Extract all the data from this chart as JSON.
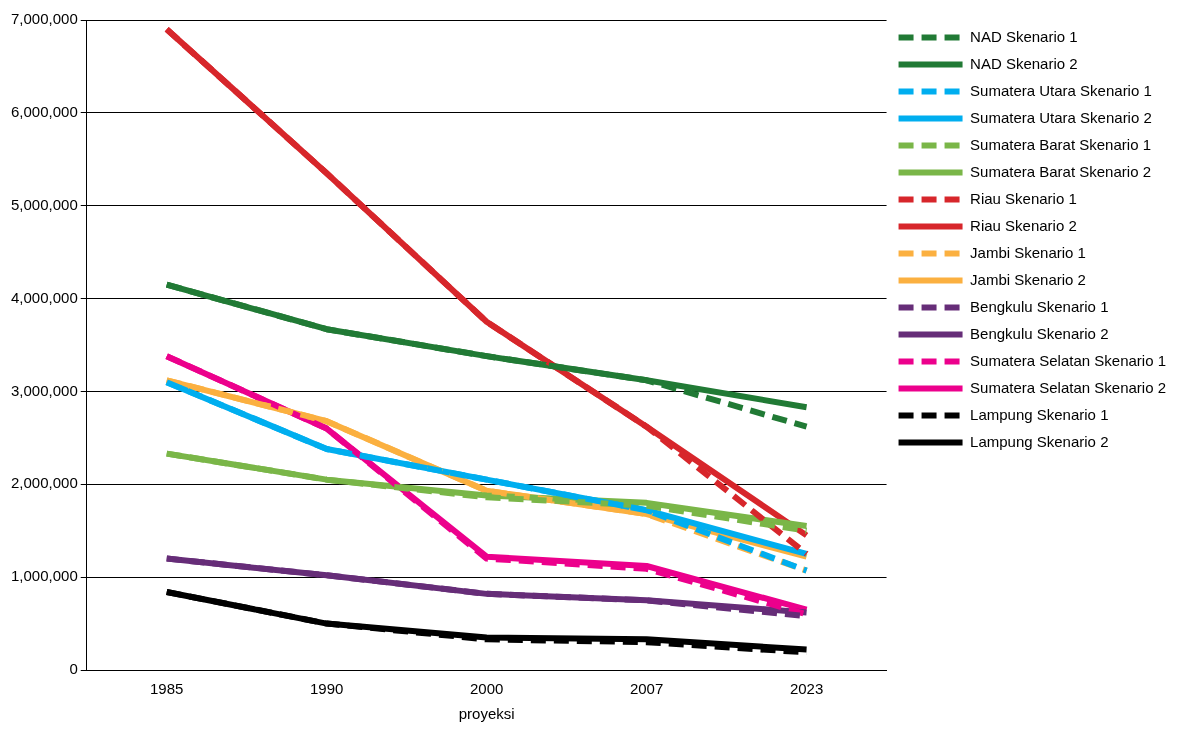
{
  "chart_data": {
    "type": "line",
    "xlabel": "proyeksi",
    "categories": [
      "1985",
      "1990",
      "2000",
      "2007",
      "2023"
    ],
    "ylim": [
      0,
      7000000
    ],
    "yticks": [
      {
        "value": 0,
        "label": "0"
      },
      {
        "value": 1000000,
        "label": "1,000,000"
      },
      {
        "value": 2000000,
        "label": "2,000,000"
      },
      {
        "value": 3000000,
        "label": "3,000,000"
      },
      {
        "value": 4000000,
        "label": "4,000,000"
      },
      {
        "value": 5000000,
        "label": "5,000,000"
      },
      {
        "value": 6000000,
        "label": "6,000,000"
      },
      {
        "value": 7000000,
        "label": "7,000,000"
      }
    ],
    "grid": "y",
    "legend": "right",
    "marker": "none",
    "series": [
      {
        "name": "NAD Skenario 1",
        "color": "#217a35",
        "line_style": "dashed",
        "values": [
          4150000,
          3670000,
          3380000,
          3120000,
          2620000
        ]
      },
      {
        "name": "NAD Skenario 2",
        "color": "#217a35",
        "line_style": "solid",
        "values": [
          4150000,
          3670000,
          3380000,
          3120000,
          2830000
        ]
      },
      {
        "name": "Sumatera Utara Skenario 1",
        "color": "#00aeef",
        "line_style": "dashed",
        "values": [
          3100000,
          2380000,
          2050000,
          1720000,
          1070000
        ]
      },
      {
        "name": "Sumatera Utara Skenario 2",
        "color": "#00aeef",
        "line_style": "solid",
        "values": [
          3100000,
          2380000,
          2050000,
          1720000,
          1250000
        ]
      },
      {
        "name": "Sumatera Barat Skenario 1",
        "color": "#7ab648",
        "line_style": "dashed",
        "values": [
          2330000,
          2050000,
          1860000,
          1770000,
          1500000
        ]
      },
      {
        "name": "Sumatera Barat Skenario 2",
        "color": "#7ab648",
        "line_style": "solid",
        "values": [
          2330000,
          2050000,
          1880000,
          1800000,
          1550000
        ]
      },
      {
        "name": "Riau Skenario 1",
        "color": "#d7262b",
        "line_style": "dashed",
        "values": [
          6900000,
          5350000,
          3750000,
          2620000,
          1250000
        ]
      },
      {
        "name": "Riau Skenario 2",
        "color": "#d7262b",
        "line_style": "solid",
        "values": [
          6900000,
          5350000,
          3750000,
          2620000,
          1450000
        ]
      },
      {
        "name": "Jambi Skenario 1",
        "color": "#fbb040",
        "line_style": "dashed",
        "values": [
          3120000,
          2680000,
          1930000,
          1680000,
          1070000
        ]
      },
      {
        "name": "Jambi Skenario 2",
        "color": "#fbb040",
        "line_style": "solid",
        "values": [
          3120000,
          2680000,
          1930000,
          1680000,
          1220000
        ]
      },
      {
        "name": "Bengkulu Skenario 1",
        "color": "#662d78",
        "line_style": "dashed",
        "values": [
          1200000,
          1020000,
          820000,
          750000,
          580000
        ]
      },
      {
        "name": "Bengkulu Skenario 2",
        "color": "#662d78",
        "line_style": "solid",
        "values": [
          1200000,
          1020000,
          820000,
          750000,
          620000
        ]
      },
      {
        "name": "Sumatera Selatan Skenario 1",
        "color": "#ec008c",
        "line_style": "dashed",
        "values": [
          3380000,
          2600000,
          1200000,
          1090000,
          600000
        ]
      },
      {
        "name": "Sumatera Selatan Skenario 2",
        "color": "#ec008c",
        "line_style": "solid",
        "values": [
          3380000,
          2600000,
          1220000,
          1120000,
          650000
        ]
      },
      {
        "name": "Lampung Skenario 1",
        "color": "#000000",
        "line_style": "dashed",
        "values": [
          840000,
          500000,
          330000,
          300000,
          190000
        ]
      },
      {
        "name": "Lampung Skenario 2",
        "color": "#000000",
        "line_style": "solid",
        "values": [
          840000,
          500000,
          350000,
          330000,
          220000
        ]
      }
    ]
  }
}
